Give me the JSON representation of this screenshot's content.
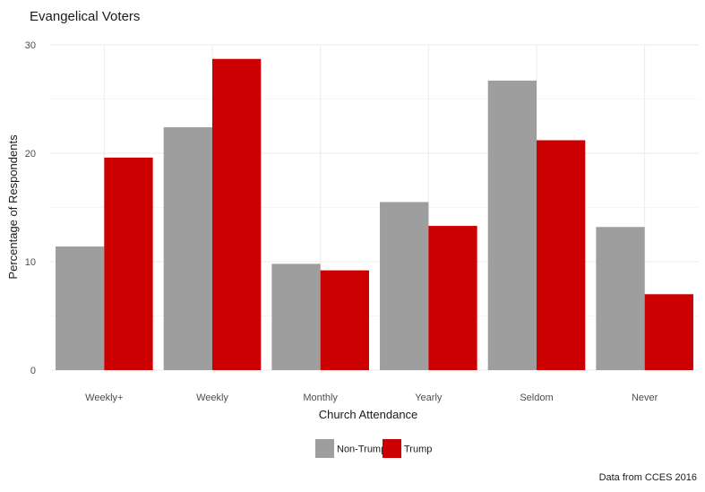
{
  "chart_data": {
    "type": "bar",
    "title": "Evangelical Voters",
    "xlabel": "Church Attendance",
    "ylabel": "Percentage of Respondents",
    "caption": "Data from CCES 2016",
    "categories": [
      "Weekly+",
      "Weekly",
      "Monthly",
      "Yearly",
      "Seldom",
      "Never"
    ],
    "series": [
      {
        "name": "Non-Trump",
        "color": "#9e9e9e",
        "values": [
          11.4,
          22.4,
          9.8,
          15.5,
          26.7,
          13.2
        ]
      },
      {
        "name": "Trump",
        "color": "#cc0000",
        "values": [
          19.6,
          28.7,
          9.2,
          13.3,
          21.2,
          7.0
        ]
      }
    ],
    "ylim": [
      0,
      30
    ],
    "yticks": [
      0,
      10,
      20,
      30
    ],
    "grid": true,
    "legend_position": "bottom"
  }
}
